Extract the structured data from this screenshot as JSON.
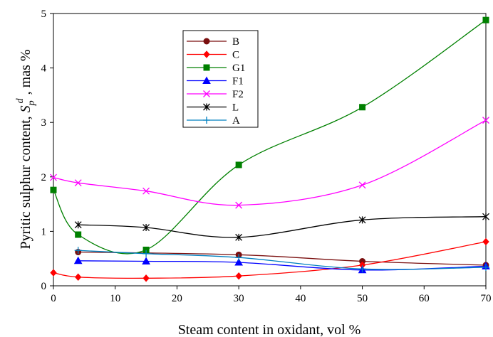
{
  "chart_data": {
    "type": "line",
    "title": "",
    "xlabel": "Steam content in oxidant, vol %",
    "ylabel": {
      "prefix": "Pyritic sulphur content, ",
      "symbol": "S",
      "subscript": "p",
      "superscript": "d",
      "suffix": " , mas %"
    },
    "xlim": [
      0,
      70
    ],
    "ylim": [
      0,
      5
    ],
    "xticks": [
      0,
      10,
      20,
      30,
      40,
      50,
      60,
      70
    ],
    "yticks": [
      0,
      1,
      2,
      3,
      4,
      5
    ],
    "grid": false,
    "legend_position": "upper-left-center",
    "series": [
      {
        "name": "B",
        "color": "#7a0f0f",
        "marker": "circle",
        "x": [
          4,
          30,
          50,
          70
        ],
        "y": [
          0.62,
          0.57,
          0.45,
          0.38
        ]
      },
      {
        "name": "C",
        "color": "#ff0000",
        "marker": "diamond",
        "x": [
          0,
          4,
          15,
          30,
          50,
          70
        ],
        "y": [
          0.24,
          0.16,
          0.14,
          0.18,
          0.38,
          0.81
        ]
      },
      {
        "name": "G1",
        "color": "#008000",
        "marker": "square",
        "x": [
          0,
          4,
          15,
          30,
          50,
          70
        ],
        "y": [
          1.76,
          0.94,
          0.66,
          2.22,
          3.28,
          4.88
        ]
      },
      {
        "name": "F1",
        "color": "#0000ff",
        "marker": "triangle",
        "x": [
          4,
          15,
          30,
          50,
          70
        ],
        "y": [
          0.46,
          0.45,
          0.43,
          0.29,
          0.36
        ]
      },
      {
        "name": "F2",
        "color": "#ff00ff",
        "marker": "x",
        "x": [
          0,
          4,
          15,
          30,
          50,
          70
        ],
        "y": [
          1.99,
          1.89,
          1.74,
          1.48,
          1.85,
          3.04
        ]
      },
      {
        "name": "L",
        "color": "#000000",
        "marker": "star",
        "x": [
          4,
          15,
          30,
          50,
          70
        ],
        "y": [
          1.12,
          1.07,
          0.89,
          1.21,
          1.27
        ]
      },
      {
        "name": "A",
        "color": "#0080c0",
        "marker": "plus",
        "x": [
          4,
          15,
          30,
          50,
          70
        ],
        "y": [
          0.65,
          0.59,
          0.52,
          0.31,
          0.34
        ]
      }
    ]
  }
}
